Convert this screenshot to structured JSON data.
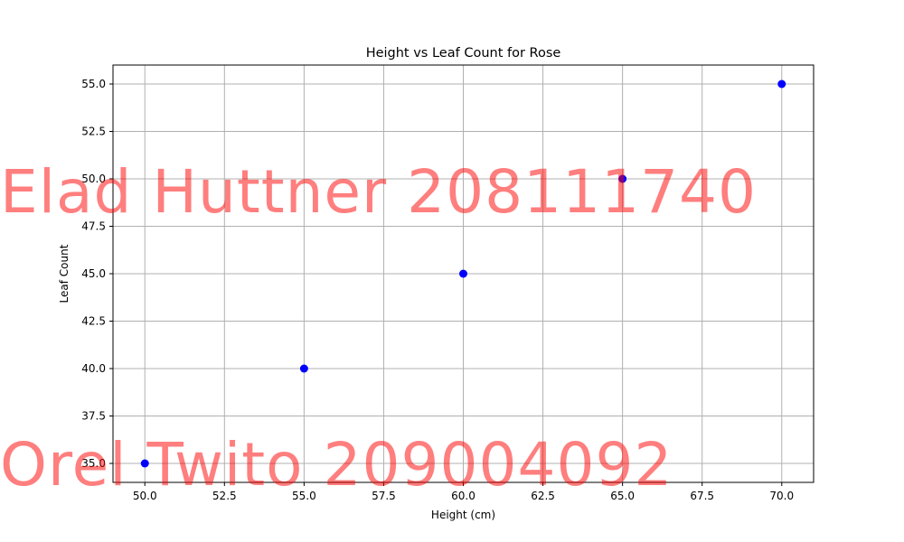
{
  "chart_data": {
    "type": "scatter",
    "title": "Height vs Leaf Count for Rose",
    "xlabel": "Height (cm)",
    "ylabel": "Leaf Count",
    "xlim": [
      49,
      71
    ],
    "ylim": [
      34,
      56
    ],
    "xticks": [
      50.0,
      52.5,
      55.0,
      57.5,
      60.0,
      62.5,
      65.0,
      67.5,
      70.0
    ],
    "xtick_labels": [
      "50.0",
      "52.5",
      "55.0",
      "57.5",
      "60.0",
      "62.5",
      "65.0",
      "67.5",
      "70.0"
    ],
    "yticks": [
      35.0,
      37.5,
      40.0,
      42.5,
      45.0,
      47.5,
      50.0,
      52.5,
      55.0
    ],
    "ytick_labels": [
      "35.0",
      "37.5",
      "40.0",
      "42.5",
      "45.0",
      "47.5",
      "50.0",
      "52.5",
      "55.0"
    ],
    "grid": true,
    "series": [
      {
        "name": "Rose",
        "color": "#0000ff",
        "x": [
          50,
          55,
          60,
          65,
          70
        ],
        "y": [
          35,
          40,
          45,
          50,
          55
        ]
      }
    ]
  },
  "watermarks": [
    {
      "text": "Elad Huttner 208111740",
      "color": "#ff0000"
    },
    {
      "text": "Orel Twito 209004092",
      "color": "#ff0000"
    }
  ]
}
